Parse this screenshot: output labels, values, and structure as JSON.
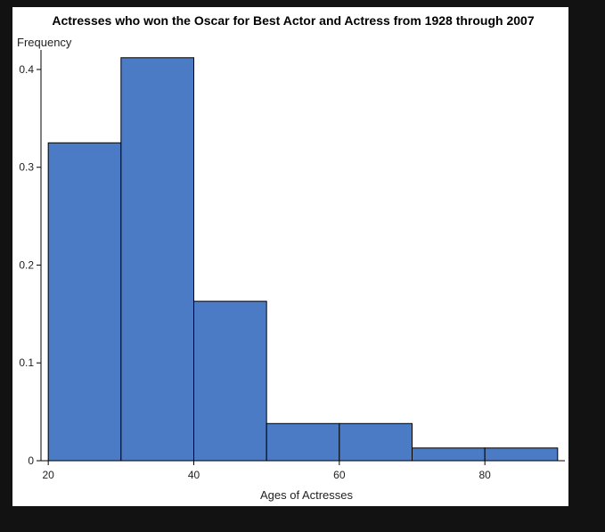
{
  "chart_data": {
    "type": "bar",
    "title": "Actresses who won the Oscar for Best Actor and Actress from 1928 through 2007",
    "xlabel": "Ages of Actresses",
    "ylabel": "Frequency",
    "bins": [
      {
        "start": 20,
        "end": 30,
        "value": 0.325
      },
      {
        "start": 30,
        "end": 40,
        "value": 0.412
      },
      {
        "start": 40,
        "end": 50,
        "value": 0.163
      },
      {
        "start": 50,
        "end": 60,
        "value": 0.038
      },
      {
        "start": 60,
        "end": 70,
        "value": 0.038
      },
      {
        "start": 70,
        "end": 80,
        "value": 0.013
      },
      {
        "start": 80,
        "end": 90,
        "value": 0.013
      }
    ],
    "xlim": [
      19,
      91
    ],
    "ylim": [
      0,
      0.42
    ],
    "xticks": [
      20,
      40,
      60,
      80
    ],
    "xtick_labels": [
      "20",
      "40",
      "60",
      "80"
    ],
    "yticks": [
      0,
      0.1,
      0.2,
      0.3,
      0.4
    ],
    "ytick_labels": [
      "0",
      "0.1",
      "0.2",
      "0.3",
      "0.4"
    ],
    "grid": false,
    "bar_color": "#4a7bc4",
    "background": "#121212",
    "plot_background": "#ffffff"
  }
}
